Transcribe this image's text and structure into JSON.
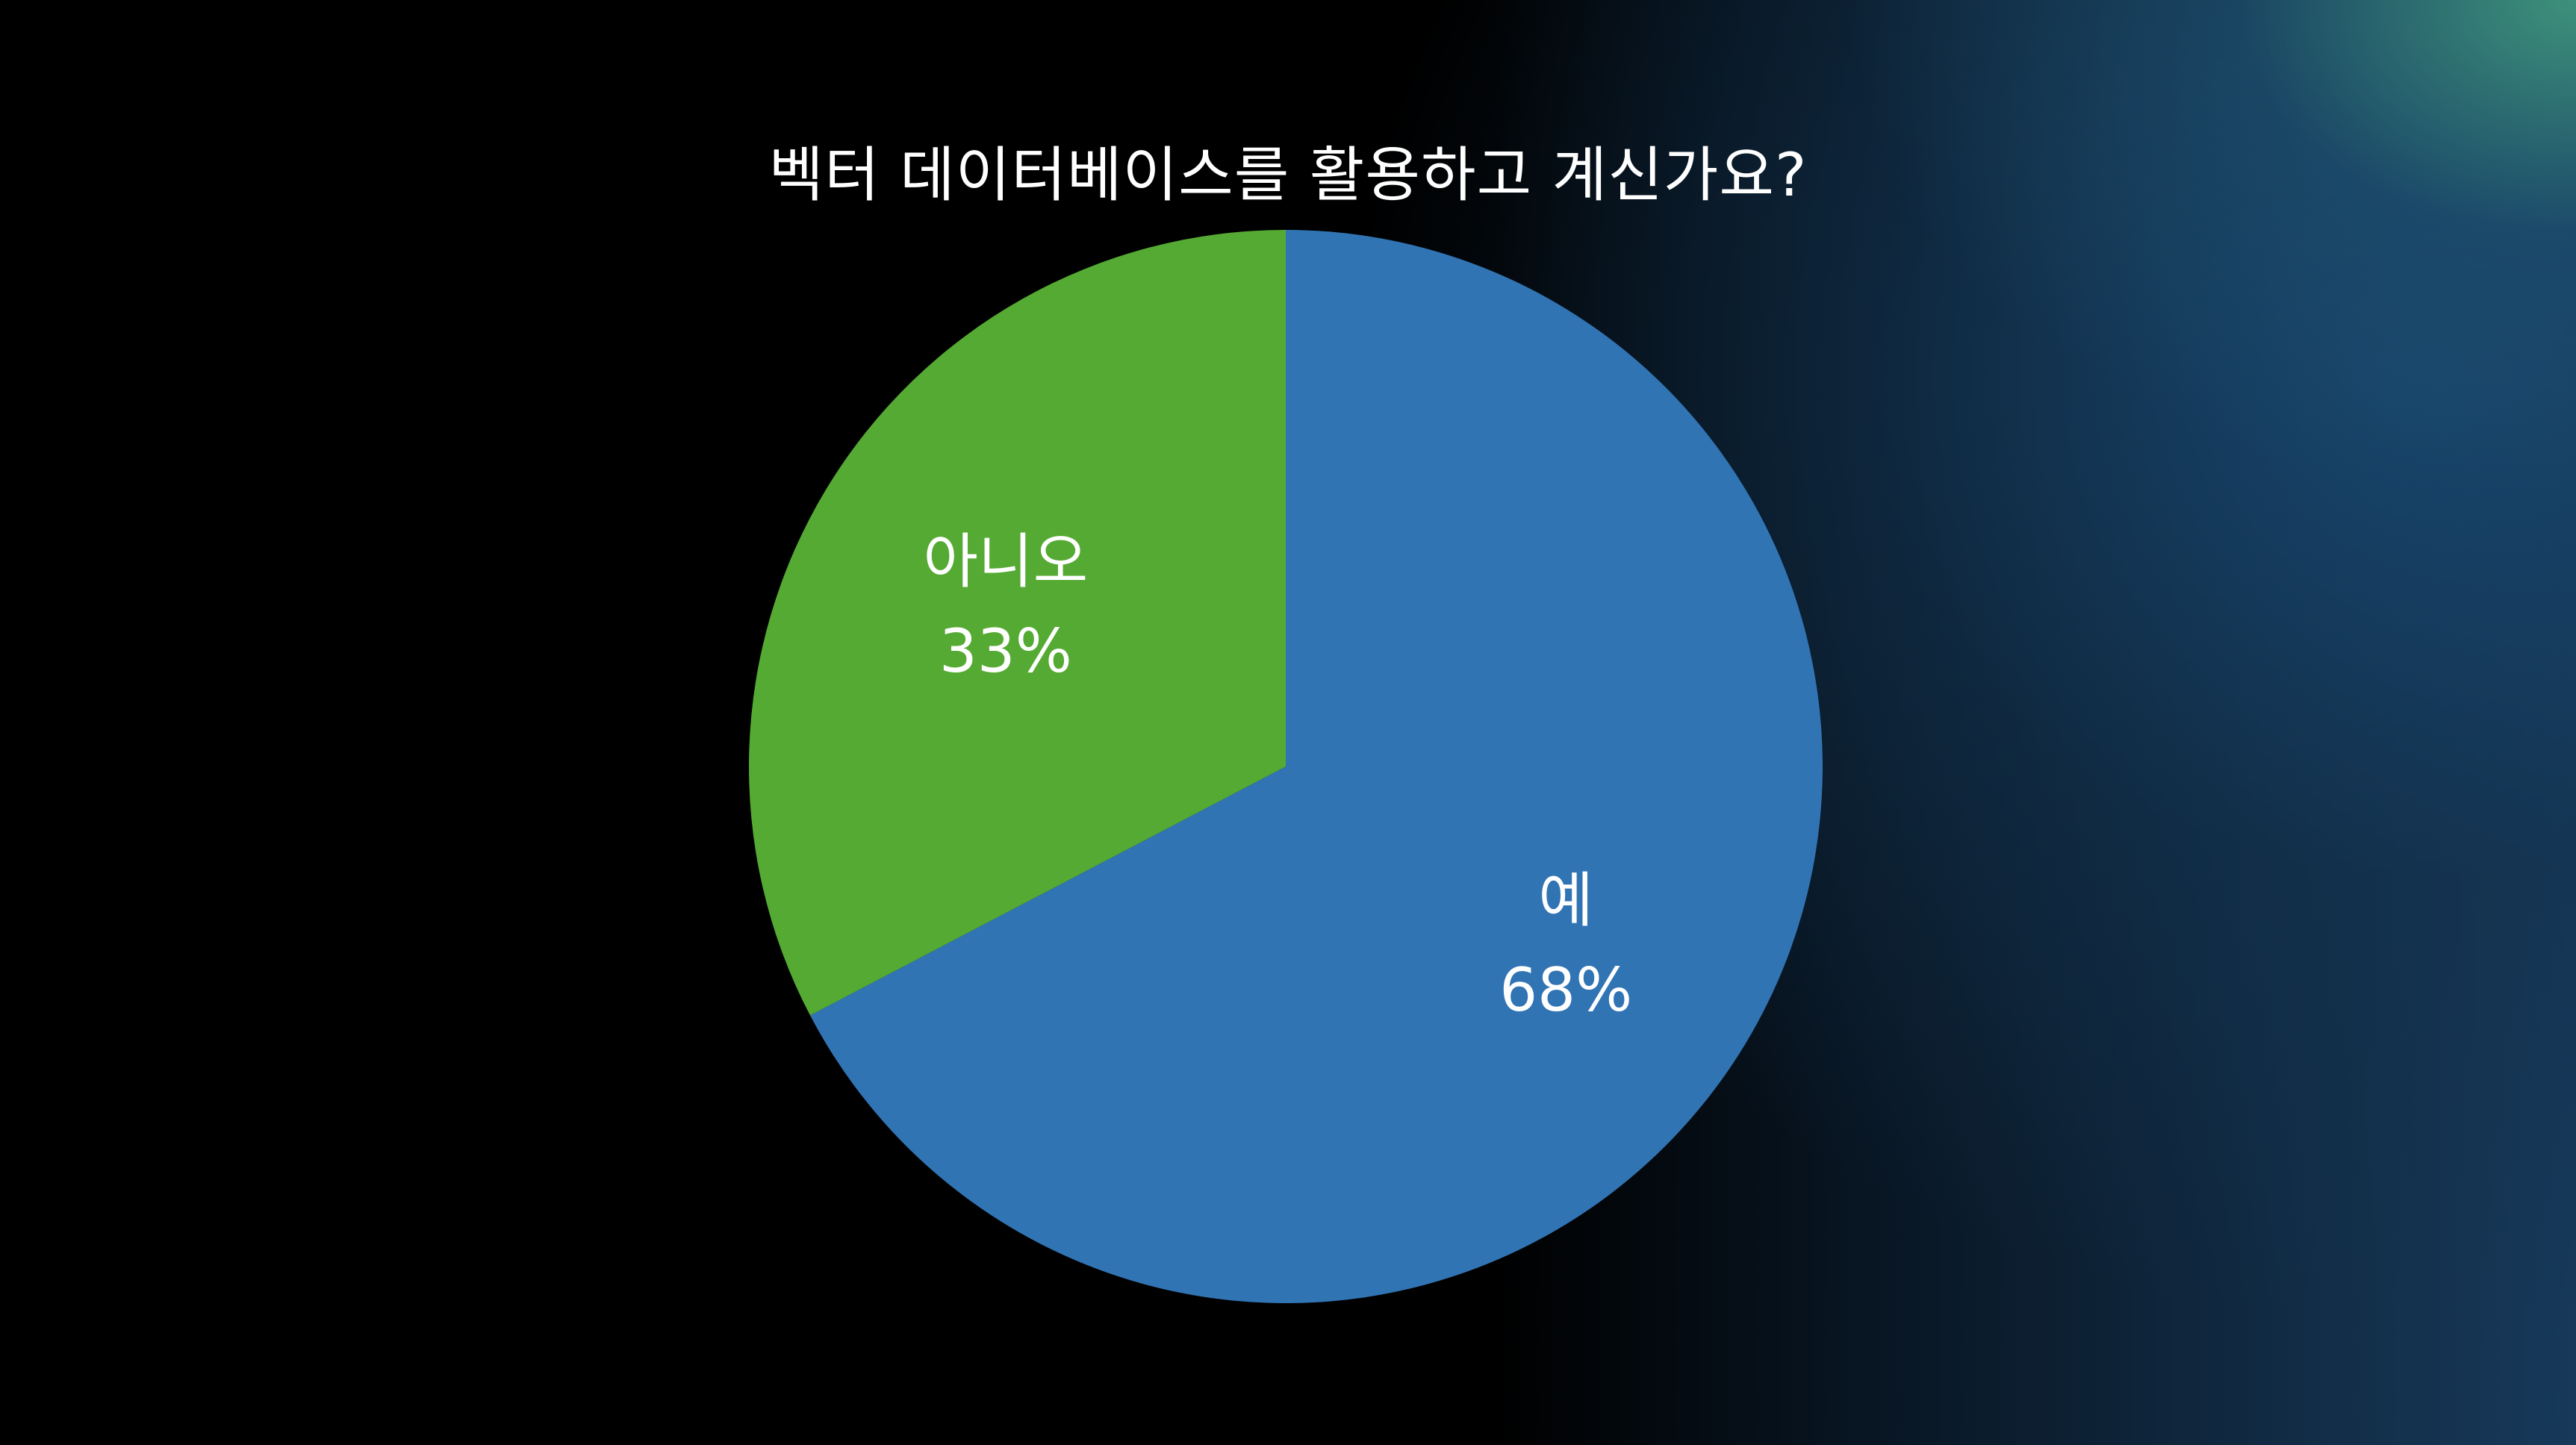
{
  "chart_data": {
    "type": "pie",
    "title": "벡터 데이터베이스를 활용하고 계신가요?",
    "slices": [
      {
        "label": "예",
        "value": 68,
        "display": "68%",
        "color": "#3174b4"
      },
      {
        "label": "아니오",
        "value": 33,
        "display": "33%",
        "color": "#55aa33"
      }
    ],
    "start_angle_deg": 0,
    "direction": "clockwise",
    "legend": "none"
  }
}
